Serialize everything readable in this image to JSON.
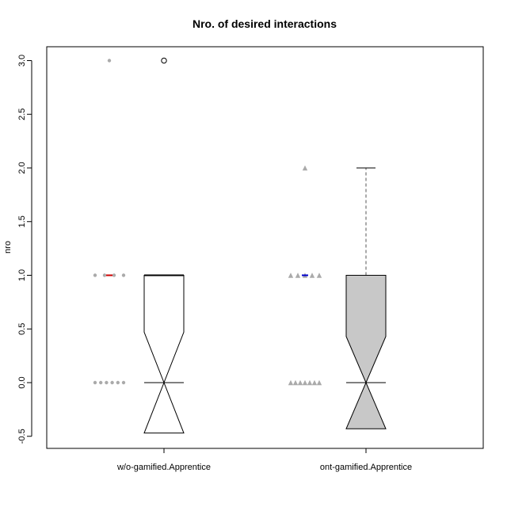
{
  "chart_data": {
    "type": "boxplot",
    "title": "Nro. of desired interactions",
    "xlabel": "",
    "ylabel": "nro",
    "ylim": [
      -0.5,
      3.0
    ],
    "yticks": [
      "-0.5",
      "0.0",
      "0.5",
      "1.0",
      "1.5",
      "2.0",
      "2.5",
      "3.0"
    ],
    "grid": false,
    "categories": [
      "w/o-gamified.Apprentice",
      "ont-gamified.Apprentice"
    ],
    "boxes": [
      {
        "name": "w/o-gamified.Apprentice",
        "min": 0,
        "q1": 0,
        "median": 0,
        "q3": 1,
        "max": 1,
        "notch_low": -0.47,
        "notch_high": 0.47,
        "outliers": [
          3
        ],
        "fill": "#ffffff",
        "whisker_style": "dashed",
        "points": [
          0,
          0,
          0,
          0,
          0,
          0,
          1,
          1,
          1,
          1,
          3
        ],
        "point_marker": "circle",
        "mean": 1,
        "mean_color": "#cc0000"
      },
      {
        "name": "ont-gamified.Apprentice",
        "min": 0,
        "q1": 0,
        "median": 0,
        "q3": 1,
        "max": 2,
        "notch_low": -0.43,
        "notch_high": 0.43,
        "outliers": [],
        "fill": "#c8c8c8",
        "whisker_style": "dashed",
        "points": [
          0,
          0,
          0,
          0,
          0,
          0,
          0,
          1,
          1,
          1,
          1,
          1,
          2
        ],
        "point_marker": "triangle",
        "mean": 1,
        "mean_color": "#0000cc"
      }
    ]
  }
}
